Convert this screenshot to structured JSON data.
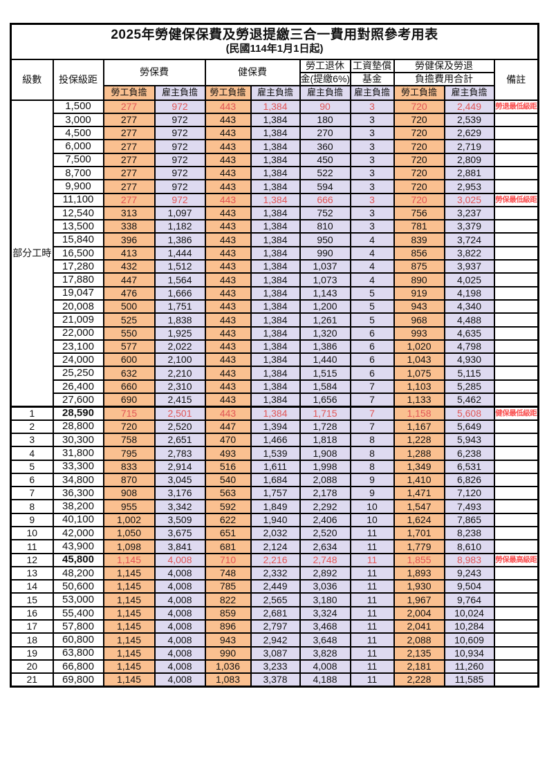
{
  "title": "2025年勞健保保費及勞退提繳三合一費用對照參考用表",
  "subtitle": "(民國114年1月1日起)",
  "group_label": "部分工時",
  "columns": {
    "level": "級數",
    "bracket": "投保級距",
    "labor_fee": "勞保費",
    "health_fee": "健保費",
    "pension_l1": "勞工退休",
    "pension_l2": "金(提繳6%)",
    "arrears_l1": "工資墊償",
    "arrears_l2": "基金",
    "total_l1": "勞健保及勞退",
    "total_l2": "負擔費用合計",
    "remark": "備註",
    "employee": "勞工負擔",
    "employer": "雇主負擔"
  },
  "colors": {
    "employee_bg": "#FAC090",
    "employer_bg": "#DEDAF0",
    "highlight_text": "#E05656",
    "remark_text": "#FA5050",
    "border": "#000000"
  },
  "rows": [
    {
      "level": "",
      "bracket": "1,500",
      "cells": [
        "277",
        "972",
        "443",
        "1,384",
        "90",
        "3",
        "720",
        "2,449"
      ],
      "remark": "勞退最低級距",
      "red": true,
      "bold": false,
      "section_start": false
    },
    {
      "level": "",
      "bracket": "3,000",
      "cells": [
        "277",
        "972",
        "443",
        "1,384",
        "180",
        "3",
        "720",
        "2,539"
      ],
      "remark": "",
      "red": false,
      "bold": false,
      "section_start": false
    },
    {
      "level": "",
      "bracket": "4,500",
      "cells": [
        "277",
        "972",
        "443",
        "1,384",
        "270",
        "3",
        "720",
        "2,629"
      ],
      "remark": "",
      "red": false,
      "bold": false,
      "section_start": false
    },
    {
      "level": "",
      "bracket": "6,000",
      "cells": [
        "277",
        "972",
        "443",
        "1,384",
        "360",
        "3",
        "720",
        "2,719"
      ],
      "remark": "",
      "red": false,
      "bold": false,
      "section_start": false
    },
    {
      "level": "",
      "bracket": "7,500",
      "cells": [
        "277",
        "972",
        "443",
        "1,384",
        "450",
        "3",
        "720",
        "2,809"
      ],
      "remark": "",
      "red": false,
      "bold": false,
      "section_start": false
    },
    {
      "level": "",
      "bracket": "8,700",
      "cells": [
        "277",
        "972",
        "443",
        "1,384",
        "522",
        "3",
        "720",
        "2,881"
      ],
      "remark": "",
      "red": false,
      "bold": false,
      "section_start": false
    },
    {
      "level": "",
      "bracket": "9,900",
      "cells": [
        "277",
        "972",
        "443",
        "1,384",
        "594",
        "3",
        "720",
        "2,953"
      ],
      "remark": "",
      "red": false,
      "bold": false,
      "section_start": false
    },
    {
      "level": "",
      "bracket": "11,100",
      "cells": [
        "277",
        "972",
        "443",
        "1,384",
        "666",
        "3",
        "720",
        "3,025"
      ],
      "remark": "勞保最低級距",
      "red": true,
      "bold": false,
      "section_start": false
    },
    {
      "level": "",
      "bracket": "12,540",
      "cells": [
        "313",
        "1,097",
        "443",
        "1,384",
        "752",
        "3",
        "756",
        "3,237"
      ],
      "remark": "",
      "red": false,
      "bold": false,
      "section_start": false
    },
    {
      "level": "",
      "bracket": "13,500",
      "cells": [
        "338",
        "1,182",
        "443",
        "1,384",
        "810",
        "3",
        "781",
        "3,379"
      ],
      "remark": "",
      "red": false,
      "bold": false,
      "section_start": false
    },
    {
      "level": "",
      "bracket": "15,840",
      "cells": [
        "396",
        "1,386",
        "443",
        "1,384",
        "950",
        "4",
        "839",
        "3,724"
      ],
      "remark": "",
      "red": false,
      "bold": false,
      "section_start": false
    },
    {
      "level": "",
      "bracket": "16,500",
      "cells": [
        "413",
        "1,444",
        "443",
        "1,384",
        "990",
        "4",
        "856",
        "3,822"
      ],
      "remark": "",
      "red": false,
      "bold": false,
      "section_start": false
    },
    {
      "level": "",
      "bracket": "17,280",
      "cells": [
        "432",
        "1,512",
        "443",
        "1,384",
        "1,037",
        "4",
        "875",
        "3,937"
      ],
      "remark": "",
      "red": false,
      "bold": false,
      "section_start": false
    },
    {
      "level": "",
      "bracket": "17,880",
      "cells": [
        "447",
        "1,564",
        "443",
        "1,384",
        "1,073",
        "4",
        "890",
        "4,025"
      ],
      "remark": "",
      "red": false,
      "bold": false,
      "section_start": false
    },
    {
      "level": "",
      "bracket": "19,047",
      "cells": [
        "476",
        "1,666",
        "443",
        "1,384",
        "1,143",
        "5",
        "919",
        "4,198"
      ],
      "remark": "",
      "red": false,
      "bold": false,
      "section_start": false
    },
    {
      "level": "",
      "bracket": "20,008",
      "cells": [
        "500",
        "1,751",
        "443",
        "1,384",
        "1,200",
        "5",
        "943",
        "4,340"
      ],
      "remark": "",
      "red": false,
      "bold": false,
      "section_start": false
    },
    {
      "level": "",
      "bracket": "21,009",
      "cells": [
        "525",
        "1,838",
        "443",
        "1,384",
        "1,261",
        "5",
        "968",
        "4,488"
      ],
      "remark": "",
      "red": false,
      "bold": false,
      "section_start": false
    },
    {
      "level": "",
      "bracket": "22,000",
      "cells": [
        "550",
        "1,925",
        "443",
        "1,384",
        "1,320",
        "6",
        "993",
        "4,635"
      ],
      "remark": "",
      "red": false,
      "bold": false,
      "section_start": false
    },
    {
      "level": "",
      "bracket": "23,100",
      "cells": [
        "577",
        "2,022",
        "443",
        "1,384",
        "1,386",
        "6",
        "1,020",
        "4,798"
      ],
      "remark": "",
      "red": false,
      "bold": false,
      "section_start": false
    },
    {
      "level": "",
      "bracket": "24,000",
      "cells": [
        "600",
        "2,100",
        "443",
        "1,384",
        "1,440",
        "6",
        "1,043",
        "4,930"
      ],
      "remark": "",
      "red": false,
      "bold": false,
      "section_start": false
    },
    {
      "level": "",
      "bracket": "25,250",
      "cells": [
        "632",
        "2,210",
        "443",
        "1,384",
        "1,515",
        "6",
        "1,075",
        "5,115"
      ],
      "remark": "",
      "red": false,
      "bold": false,
      "section_start": false
    },
    {
      "level": "",
      "bracket": "26,400",
      "cells": [
        "660",
        "2,310",
        "443",
        "1,384",
        "1,584",
        "7",
        "1,103",
        "5,285"
      ],
      "remark": "",
      "red": false,
      "bold": false,
      "section_start": false
    },
    {
      "level": "",
      "bracket": "27,600",
      "cells": [
        "690",
        "2,415",
        "443",
        "1,384",
        "1,656",
        "7",
        "1,133",
        "5,462"
      ],
      "remark": "",
      "red": false,
      "bold": false,
      "section_start": false
    },
    {
      "level": "1",
      "bracket": "28,590",
      "cells": [
        "715",
        "2,501",
        "443",
        "1,384",
        "1,715",
        "7",
        "1,158",
        "5,608"
      ],
      "remark": "健保最低級距",
      "red": true,
      "bold": true,
      "section_start": true
    },
    {
      "level": "2",
      "bracket": "28,800",
      "cells": [
        "720",
        "2,520",
        "447",
        "1,394",
        "1,728",
        "7",
        "1,167",
        "5,649"
      ],
      "remark": "",
      "red": false,
      "bold": false,
      "section_start": false
    },
    {
      "level": "3",
      "bracket": "30,300",
      "cells": [
        "758",
        "2,651",
        "470",
        "1,466",
        "1,818",
        "8",
        "1,228",
        "5,943"
      ],
      "remark": "",
      "red": false,
      "bold": false,
      "section_start": false
    },
    {
      "level": "4",
      "bracket": "31,800",
      "cells": [
        "795",
        "2,783",
        "493",
        "1,539",
        "1,908",
        "8",
        "1,288",
        "6,238"
      ],
      "remark": "",
      "red": false,
      "bold": false,
      "section_start": false
    },
    {
      "level": "5",
      "bracket": "33,300",
      "cells": [
        "833",
        "2,914",
        "516",
        "1,611",
        "1,998",
        "8",
        "1,349",
        "6,531"
      ],
      "remark": "",
      "red": false,
      "bold": false,
      "section_start": false
    },
    {
      "level": "6",
      "bracket": "34,800",
      "cells": [
        "870",
        "3,045",
        "540",
        "1,684",
        "2,088",
        "9",
        "1,410",
        "6,826"
      ],
      "remark": "",
      "red": false,
      "bold": false,
      "section_start": false
    },
    {
      "level": "7",
      "bracket": "36,300",
      "cells": [
        "908",
        "3,176",
        "563",
        "1,757",
        "2,178",
        "9",
        "1,471",
        "7,120"
      ],
      "remark": "",
      "red": false,
      "bold": false,
      "section_start": false
    },
    {
      "level": "8",
      "bracket": "38,200",
      "cells": [
        "955",
        "3,342",
        "592",
        "1,849",
        "2,292",
        "10",
        "1,547",
        "7,493"
      ],
      "remark": "",
      "red": false,
      "bold": false,
      "section_start": false
    },
    {
      "level": "9",
      "bracket": "40,100",
      "cells": [
        "1,002",
        "3,509",
        "622",
        "1,940",
        "2,406",
        "10",
        "1,624",
        "7,865"
      ],
      "remark": "",
      "red": false,
      "bold": false,
      "section_start": false
    },
    {
      "level": "10",
      "bracket": "42,000",
      "cells": [
        "1,050",
        "3,675",
        "651",
        "2,032",
        "2,520",
        "11",
        "1,701",
        "8,238"
      ],
      "remark": "",
      "red": false,
      "bold": false,
      "section_start": false
    },
    {
      "level": "11",
      "bracket": "43,900",
      "cells": [
        "1,098",
        "3,841",
        "681",
        "2,124",
        "2,634",
        "11",
        "1,779",
        "8,610"
      ],
      "remark": "",
      "red": false,
      "bold": false,
      "section_start": false
    },
    {
      "level": "12",
      "bracket": "45,800",
      "cells": [
        "1,145",
        "4,008",
        "710",
        "2,216",
        "2,748",
        "11",
        "1,855",
        "8,983"
      ],
      "remark": "勞保最高級距",
      "red": true,
      "bold": true,
      "section_start": false
    },
    {
      "level": "13",
      "bracket": "48,200",
      "cells": [
        "1,145",
        "4,008",
        "748",
        "2,332",
        "2,892",
        "11",
        "1,893",
        "9,243"
      ],
      "remark": "",
      "red": false,
      "bold": false,
      "section_start": false
    },
    {
      "level": "14",
      "bracket": "50,600",
      "cells": [
        "1,145",
        "4,008",
        "785",
        "2,449",
        "3,036",
        "11",
        "1,930",
        "9,504"
      ],
      "remark": "",
      "red": false,
      "bold": false,
      "section_start": false
    },
    {
      "level": "15",
      "bracket": "53,000",
      "cells": [
        "1,145",
        "4,008",
        "822",
        "2,565",
        "3,180",
        "11",
        "1,967",
        "9,764"
      ],
      "remark": "",
      "red": false,
      "bold": false,
      "section_start": false
    },
    {
      "level": "16",
      "bracket": "55,400",
      "cells": [
        "1,145",
        "4,008",
        "859",
        "2,681",
        "3,324",
        "11",
        "2,004",
        "10,024"
      ],
      "remark": "",
      "red": false,
      "bold": false,
      "section_start": false
    },
    {
      "level": "17",
      "bracket": "57,800",
      "cells": [
        "1,145",
        "4,008",
        "896",
        "2,797",
        "3,468",
        "11",
        "2,041",
        "10,284"
      ],
      "remark": "",
      "red": false,
      "bold": false,
      "section_start": false
    },
    {
      "level": "18",
      "bracket": "60,800",
      "cells": [
        "1,145",
        "4,008",
        "943",
        "2,942",
        "3,648",
        "11",
        "2,088",
        "10,609"
      ],
      "remark": "",
      "red": false,
      "bold": false,
      "section_start": false
    },
    {
      "level": "19",
      "bracket": "63,800",
      "cells": [
        "1,145",
        "4,008",
        "990",
        "3,087",
        "3,828",
        "11",
        "2,135",
        "10,934"
      ],
      "remark": "",
      "red": false,
      "bold": false,
      "section_start": false
    },
    {
      "level": "20",
      "bracket": "66,800",
      "cells": [
        "1,145",
        "4,008",
        "1,036",
        "3,233",
        "4,008",
        "11",
        "2,181",
        "11,260"
      ],
      "remark": "",
      "red": false,
      "bold": false,
      "section_start": false
    },
    {
      "level": "21",
      "bracket": "69,800",
      "cells": [
        "1,145",
        "4,008",
        "1,083",
        "3,378",
        "4,188",
        "11",
        "2,228",
        "11,585"
      ],
      "remark": "",
      "red": false,
      "bold": false,
      "section_start": false
    }
  ]
}
